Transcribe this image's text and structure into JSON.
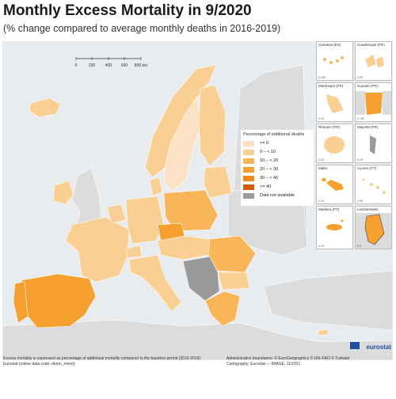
{
  "header": {
    "title": "Monthly Excess Mortality in 9/2020",
    "subtitle": "(% change compared to average monthly deaths in 2016-2019)"
  },
  "scale_bar": {
    "labels": [
      "0",
      "200",
      "400",
      "600",
      "800 km"
    ]
  },
  "legend": {
    "title": "Percentage of additional deaths",
    "items": [
      {
        "label": "<= 0",
        "color": "#fbe2c4"
      },
      {
        "label": "0 – < 10",
        "color": "#f9cf94"
      },
      {
        "label": "10 – < 20",
        "color": "#f8b658"
      },
      {
        "label": "20 – < 30",
        "color": "#f5a02f"
      },
      {
        "label": "30 – < 40",
        "color": "#ef8a1a"
      },
      {
        "label": ">= 40",
        "color": "#d85a0a"
      },
      {
        "label": "Data not available",
        "color": "#9a9a9a"
      }
    ]
  },
  "insets": [
    {
      "label": "Canarias (ES)",
      "scale": "0   100"
    },
    {
      "label": "Guadeloupe (FR)",
      "scale": "0   25"
    },
    {
      "label": "Martinique (FR)",
      "scale": "0   20"
    },
    {
      "label": "Guyane (FR)",
      "scale": "0   100"
    },
    {
      "label": "Réunion (FR)",
      "scale": "0   20"
    },
    {
      "label": "Mayotte (FR)",
      "scale": "0   15"
    },
    {
      "label": "Malta",
      "scale": "0   10"
    },
    {
      "label": "Açores (PT)",
      "scale": "0   50"
    },
    {
      "label": "Madeira (PT)",
      "scale": "0   20"
    },
    {
      "label": "Liechtenstein",
      "scale": "0   5"
    }
  ],
  "footer": {
    "left_line1": "Excess mortality is expressed as percentage of additional mortality compared to the baseline period (2016-2019)",
    "left_line2": "Eurostat (online data code: demo_mexrt)",
    "right_line1": "Administrative boundaries: © EuroGeographics © UN–FAO © Turkstat",
    "right_line2": "Cartography: Eurostat — IMAGE, 11/2021",
    "brand": "eurostat"
  }
}
